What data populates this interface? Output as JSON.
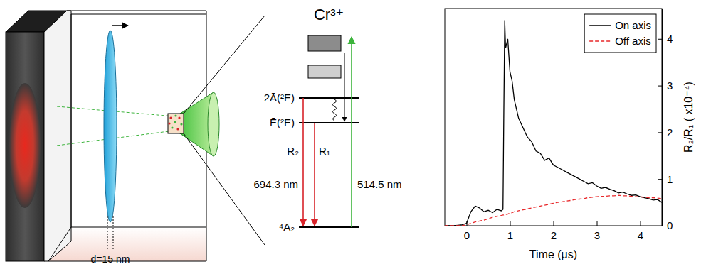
{
  "schematic": {
    "label": "d=15 nm"
  },
  "level_diagram": {
    "title": "Cr³⁺",
    "levels": [
      "2Ā(²E)",
      "Ē(²E)",
      "⁴A₂"
    ],
    "lines": [
      "R₂",
      "R₁"
    ],
    "wavelengths": [
      "694.3 nm",
      "514.5 nm"
    ]
  },
  "chart_data": {
    "type": "line",
    "x_label": "Time (μs)",
    "y_label": "R₂/R₁ ( x10⁻⁴)",
    "xlim": [
      -0.5,
      4.5
    ],
    "xticks": [
      0,
      1,
      2,
      3,
      4
    ],
    "ylim": [
      0,
      4.65
    ],
    "yticks": [
      0,
      1,
      2,
      3,
      4
    ],
    "legend": "upper right",
    "x": [
      -0.5,
      -0.4,
      -0.3,
      -0.2,
      -0.1,
      0,
      0.1,
      0.2,
      0.3,
      0.4,
      0.5,
      0.6,
      0.7,
      0.8,
      0.84,
      0.86,
      0.88,
      0.9,
      0.95,
      1.0,
      1.05,
      1.1,
      1.2,
      1.3,
      1.4,
      1.5,
      1.6,
      1.7,
      1.8,
      1.9,
      2.0,
      2.1,
      2.2,
      2.3,
      2.4,
      2.5,
      2.6,
      2.7,
      2.8,
      2.9,
      3.0,
      3.1,
      3.2,
      3.3,
      3.4,
      3.5,
      3.6,
      3.7,
      3.8,
      3.9,
      4.0,
      4.1,
      4.2,
      4.3,
      4.4,
      4.5
    ],
    "series": [
      {
        "name": "On axis",
        "color": "#000000",
        "line_style": "solid",
        "values": [
          0,
          0,
          0,
          0.01,
          0.02,
          0.05,
          0.3,
          0.42,
          0.38,
          0.3,
          0.33,
          0.28,
          0.35,
          0.32,
          0.35,
          2.5,
          4.4,
          3.8,
          4.0,
          3.3,
          3.1,
          2.7,
          2.3,
          2.1,
          1.9,
          1.8,
          1.6,
          1.55,
          1.4,
          1.45,
          1.3,
          1.25,
          1.2,
          1.15,
          1.1,
          1.05,
          1.0,
          0.95,
          0.9,
          0.92,
          0.85,
          0.8,
          0.82,
          0.78,
          0.75,
          0.7,
          0.72,
          0.68,
          0.65,
          0.66,
          0.62,
          0.6,
          0.58,
          0.55,
          0.56,
          0.5
        ]
      },
      {
        "name": "Off axis",
        "color": "#e8282b",
        "line_style": "dashed",
        "values": [
          0,
          0,
          0,
          0,
          0,
          0.02,
          0.05,
          0.08,
          0.1,
          0.12,
          0.15,
          0.18,
          0.2,
          0.22,
          0.23,
          0.23,
          0.24,
          0.24,
          0.25,
          0.27,
          0.28,
          0.3,
          0.32,
          0.34,
          0.36,
          0.38,
          0.4,
          0.42,
          0.44,
          0.46,
          0.48,
          0.5,
          0.51,
          0.53,
          0.54,
          0.56,
          0.57,
          0.58,
          0.6,
          0.61,
          0.62,
          0.63,
          0.63,
          0.64,
          0.64,
          0.65,
          0.64,
          0.64,
          0.63,
          0.62,
          0.62,
          0.61,
          0.6,
          0.6,
          0.59,
          0.58
        ]
      }
    ]
  }
}
